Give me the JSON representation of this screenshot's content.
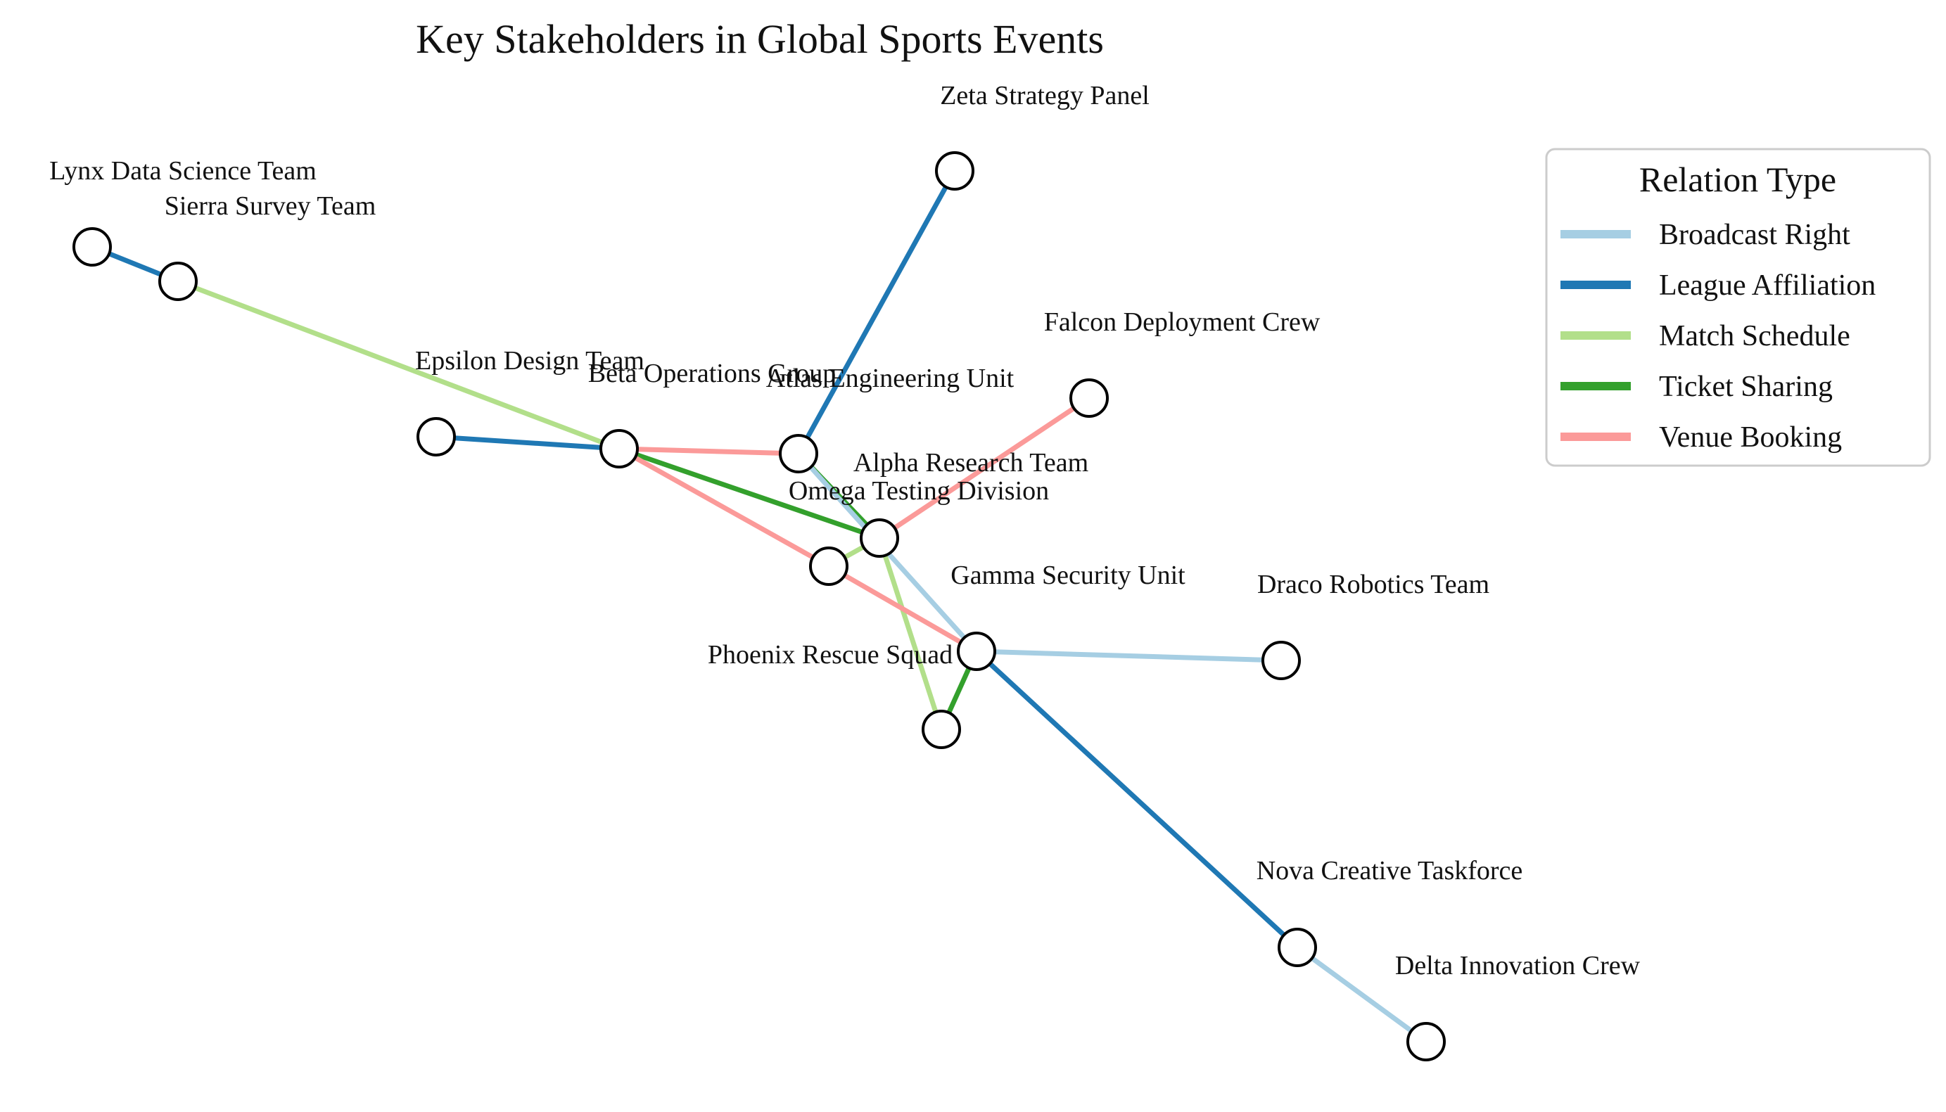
{
  "title": "Key Stakeholders in Global Sports Events",
  "legend": {
    "title": "Relation Type",
    "items": [
      {
        "key": "broadcast",
        "label": "Broadcast Right",
        "color": "#a6cee3"
      },
      {
        "key": "league",
        "label": "League Affiliation",
        "color": "#1f78b4"
      },
      {
        "key": "match",
        "label": "Match Schedule",
        "color": "#b2df8a"
      },
      {
        "key": "ticket",
        "label": "Ticket Sharing",
        "color": "#33a02c"
      },
      {
        "key": "venue",
        "label": "Venue Booking",
        "color": "#fb9a99"
      }
    ]
  },
  "nodes": [
    {
      "id": "lynx",
      "label": "Lynx Data Science Team"
    },
    {
      "id": "sierra",
      "label": "Sierra Survey Team"
    },
    {
      "id": "zeta",
      "label": "Zeta Strategy Panel"
    },
    {
      "id": "epsilon",
      "label": "Epsilon Design Team"
    },
    {
      "id": "beta",
      "label": "Beta Operations Group"
    },
    {
      "id": "atlas",
      "label": "Atlas Engineering Unit"
    },
    {
      "id": "falcon",
      "label": "Falcon Deployment Crew"
    },
    {
      "id": "alpha",
      "label": "Alpha Research Team"
    },
    {
      "id": "omega",
      "label": "Omega Testing Division"
    },
    {
      "id": "gamma",
      "label": "Gamma Security Unit"
    },
    {
      "id": "phoenix",
      "label": "Phoenix Rescue Squad"
    },
    {
      "id": "draco",
      "label": "Draco Robotics Team"
    },
    {
      "id": "nova",
      "label": "Nova Creative Taskforce"
    },
    {
      "id": "delta",
      "label": "Delta Innovation Crew"
    }
  ],
  "edges": [
    {
      "source": "lynx",
      "target": "sierra",
      "type": "league"
    },
    {
      "source": "sierra",
      "target": "beta",
      "type": "match"
    },
    {
      "source": "epsilon",
      "target": "beta",
      "type": "league"
    },
    {
      "source": "beta",
      "target": "atlas",
      "type": "venue"
    },
    {
      "source": "beta",
      "target": "alpha",
      "type": "ticket"
    },
    {
      "source": "beta",
      "target": "omega",
      "type": "venue"
    },
    {
      "source": "atlas",
      "target": "zeta",
      "type": "league"
    },
    {
      "source": "atlas",
      "target": "alpha",
      "type": "ticket"
    },
    {
      "source": "atlas",
      "target": "gamma",
      "type": "broadcast"
    },
    {
      "source": "alpha",
      "target": "falcon",
      "type": "venue"
    },
    {
      "source": "alpha",
      "target": "omega",
      "type": "match"
    },
    {
      "source": "alpha",
      "target": "phoenix",
      "type": "match"
    },
    {
      "source": "omega",
      "target": "gamma",
      "type": "venue"
    },
    {
      "source": "gamma",
      "target": "phoenix",
      "type": "ticket"
    },
    {
      "source": "gamma",
      "target": "draco",
      "type": "broadcast"
    },
    {
      "source": "gamma",
      "target": "nova",
      "type": "league"
    },
    {
      "source": "nova",
      "target": "delta",
      "type": "broadcast"
    }
  ]
}
